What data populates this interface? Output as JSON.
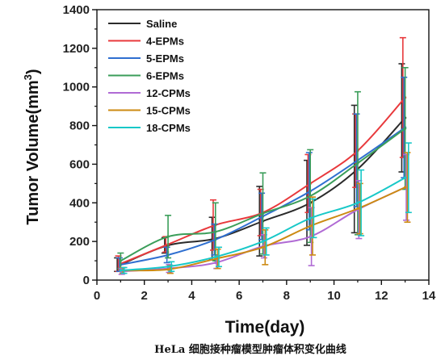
{
  "chart_data": {
    "type": "line",
    "xlabel": "Time(day)",
    "ylabel": "Tumor Volume(mm³)",
    "ylabel_base": "Tumor Volume(mm",
    "ylabel_sup": "3",
    "ylabel_close": ")",
    "xlim": [
      0,
      14
    ],
    "ylim": [
      0,
      1400
    ],
    "xticks": [
      0,
      2,
      4,
      6,
      8,
      10,
      12,
      14
    ],
    "yticks": [
      0,
      200,
      400,
      600,
      800,
      1000,
      1200,
      1400
    ],
    "x": [
      1,
      3,
      5,
      7,
      9,
      11,
      13
    ],
    "grid": false,
    "legend_position": "top-left",
    "series": [
      {
        "name": "Saline",
        "color": "#2b2b2b",
        "values": [
          80,
          180,
          215,
          305,
          400,
          575,
          840
        ],
        "errors": [
          35,
          40,
          110,
          180,
          220,
          330,
          280
        ]
      },
      {
        "name": "4-EPMs",
        "color": "#e8393c",
        "values": [
          85,
          185,
          285,
          350,
          500,
          670,
          945
        ],
        "errors": [
          40,
          40,
          130,
          120,
          150,
          190,
          310
        ]
      },
      {
        "name": "5-EPMs",
        "color": "#2f6fd0",
        "values": [
          80,
          130,
          210,
          330,
          460,
          620,
          790
        ],
        "errors": [
          35,
          40,
          80,
          120,
          200,
          240,
          260
        ]
      },
      {
        "name": "6-EPMs",
        "color": "#3b9e5a",
        "values": [
          100,
          225,
          250,
          345,
          435,
          605,
          785
        ],
        "errors": [
          40,
          110,
          150,
          210,
          240,
          370,
          315
        ]
      },
      {
        "name": "12-CPMs",
        "color": "#b06ad4",
        "values": [
          45,
          60,
          90,
          175,
          225,
          365,
          480
        ],
        "errors": [
          15,
          20,
          30,
          60,
          150,
          150,
          170
        ]
      },
      {
        "name": "15-CPMs",
        "color": "#cc8a12",
        "values": [
          50,
          55,
          110,
          170,
          280,
          370,
          480
        ],
        "errors": [
          15,
          20,
          50,
          90,
          150,
          130,
          180
        ]
      },
      {
        "name": "18-CPMs",
        "color": "#18c8c8",
        "values": [
          50,
          70,
          120,
          200,
          320,
          400,
          530
        ],
        "errors": [
          15,
          25,
          50,
          70,
          100,
          170,
          180
        ]
      }
    ]
  },
  "caption": {
    "prefix": "HeLa ",
    "text": "细胞接种瘤模型肿瘤体积变化曲线"
  }
}
